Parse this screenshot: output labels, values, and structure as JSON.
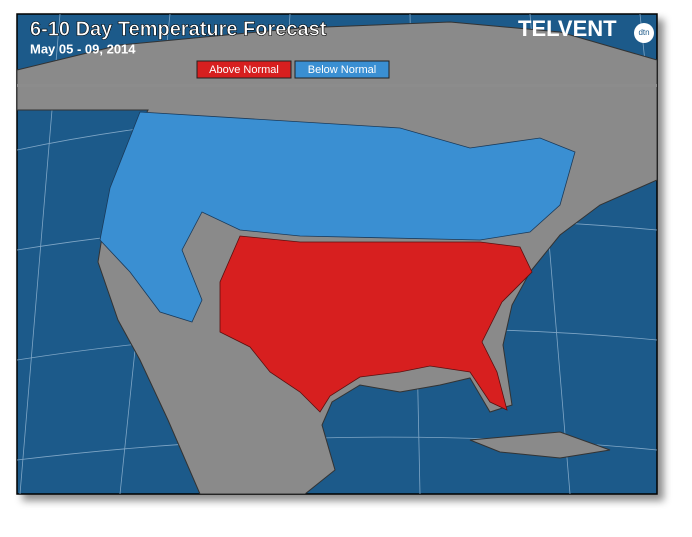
{
  "header": {
    "title": "6-10 Day Temperature Forecast",
    "subtitle": "May 05 - 09, 2014"
  },
  "legend": [
    {
      "label": "Above Normal",
      "color": "#d71f1f"
    },
    {
      "label": "Below Normal",
      "color": "#3a8fd2"
    }
  ],
  "logo": {
    "name": "TELVENT",
    "badge": "dtn"
  }
}
